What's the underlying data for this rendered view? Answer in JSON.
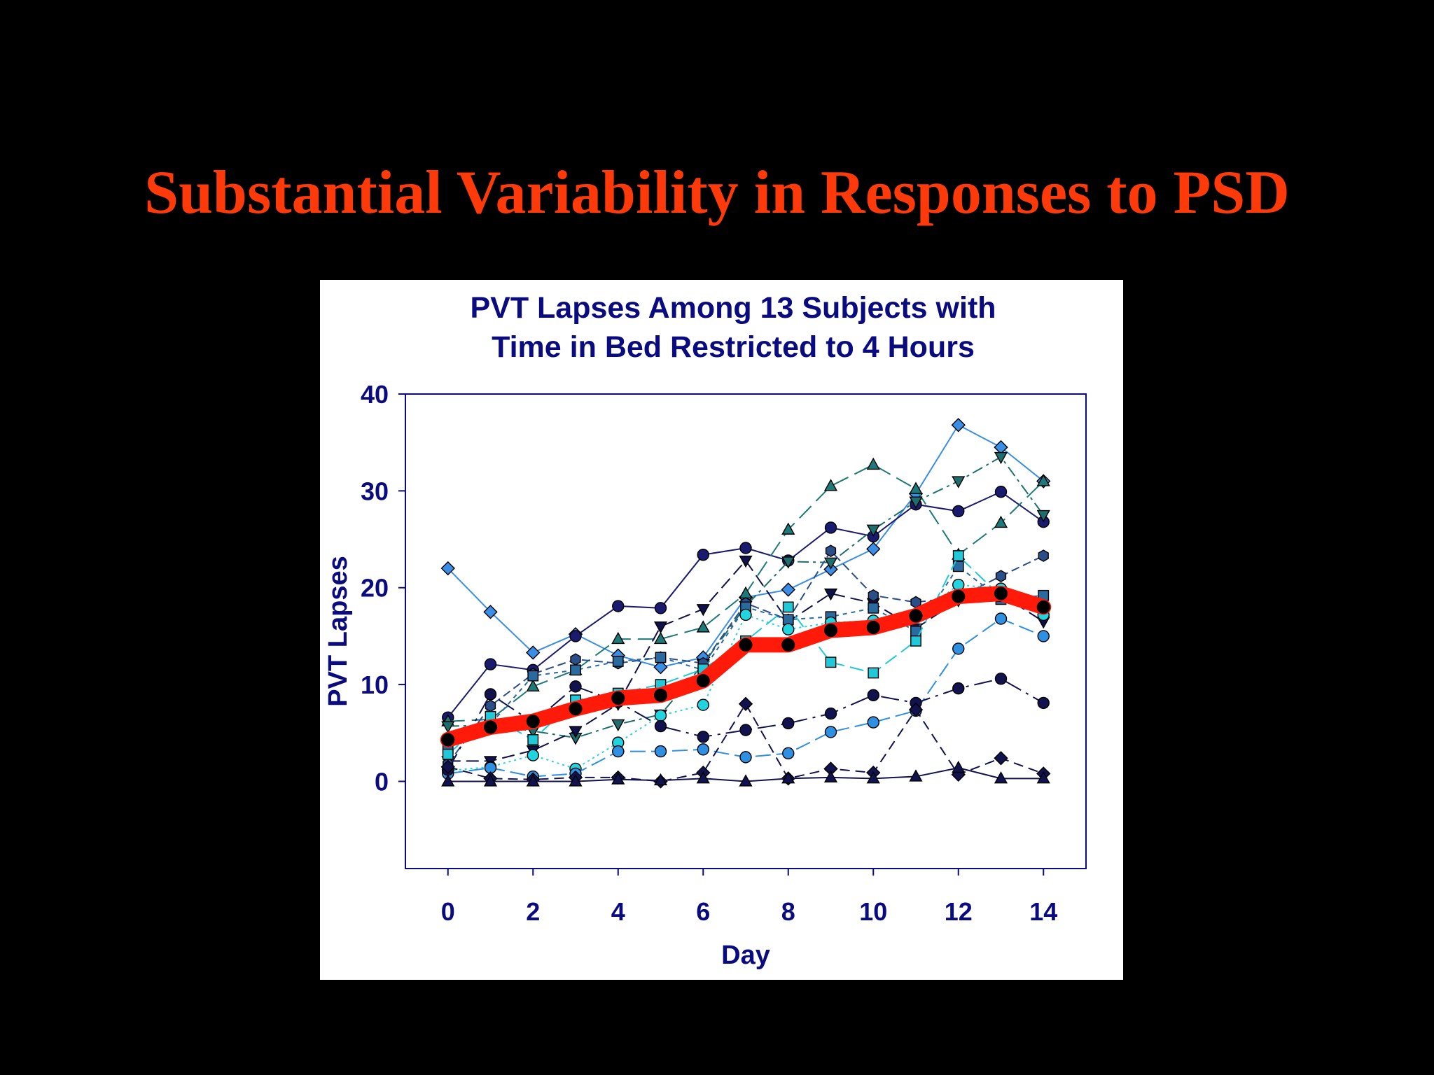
{
  "slide": {
    "title": "Substantial Variability in Responses to PSD"
  },
  "chart_data": {
    "type": "line",
    "title": [
      "PVT Lapses Among 13 Subjects with",
      "Time in Bed Restricted to 4 Hours"
    ],
    "xlabel": "Day",
    "ylabel": "PVT Lapses",
    "xlim": [
      -1,
      15
    ],
    "ylim": [
      -9,
      40
    ],
    "xticks": [
      0,
      2,
      4,
      6,
      8,
      10,
      12,
      14
    ],
    "yticks": [
      0,
      10,
      20,
      30,
      40
    ],
    "grid": false,
    "x": [
      0,
      1,
      2,
      3,
      4,
      5,
      6,
      7,
      8,
      9,
      10,
      11,
      12,
      13,
      14
    ],
    "colors": {
      "background": "#000000",
      "title": "#FF3A0A",
      "axis": "#0B0B80",
      "mean": "#FF1A0A"
    },
    "series": [
      {
        "marker": "diamond",
        "color": "#3A8EE6",
        "line": "#3A8EE6",
        "dash": "",
        "values": [
          22,
          17.5,
          13.3,
          15.2,
          13,
          11.8,
          12.8,
          19,
          19.8,
          21.9,
          24,
          29.7,
          36.8,
          34.5,
          31
        ]
      },
      {
        "marker": "circle",
        "color": "#1A1A6E",
        "line": "#1A1A6E",
        "dash": "",
        "values": [
          6.6,
          12.1,
          11.5,
          15,
          18.1,
          17.9,
          23.4,
          24.1,
          22.8,
          26.2,
          25.3,
          28.6,
          27.9,
          29.9,
          26.8
        ]
      },
      {
        "marker": "triangle",
        "color": "#1E7A7A",
        "line": "#1E7A7A",
        "dash": "24 10",
        "values": [
          6.2,
          6.4,
          9.8,
          11.5,
          14.7,
          14.7,
          15.9,
          19.4,
          26,
          30.5,
          32.7,
          30.2,
          23.4,
          26.7,
          31
        ]
      },
      {
        "marker": "triangle-down",
        "color": "#1E6E6E",
        "line": "#1E6E6E",
        "dash": "16 6 4 6",
        "values": [
          5.7,
          5.8,
          5.2,
          4.5,
          5.9,
          6.9,
          12.1,
          18.1,
          22.7,
          22.6,
          26,
          28.9,
          31,
          33.5,
          27.5
        ]
      },
      {
        "marker": "triangle-down",
        "color": "#10104A",
        "line": "#10104A",
        "dash": "18 8",
        "values": [
          2.1,
          2.1,
          3.2,
          5.2,
          8,
          16,
          17.8,
          22.8,
          16.5,
          19.4,
          18.4,
          15.8,
          18.7,
          19.3,
          16.5
        ]
      },
      {
        "marker": "hexagon",
        "color": "#2A4E88",
        "line": "#2A4E88",
        "dash": "12 6",
        "values": [
          1.8,
          7.8,
          11.1,
          12.6,
          12.2,
          12.8,
          12.2,
          18.4,
          16.7,
          23.8,
          19.2,
          18.5,
          19,
          21.2,
          23.3
        ]
      },
      {
        "marker": "square",
        "color": "#2A6A9E",
        "line": "#2A6A9E",
        "dash": "6 6",
        "values": [
          3.4,
          5.9,
          10.9,
          11.5,
          12.4,
          12.8,
          11.5,
          18,
          16.7,
          17,
          17.9,
          15.5,
          22.2,
          18.8,
          19.2
        ]
      },
      {
        "marker": "square",
        "color": "#20C8D8",
        "line": "#20C8D8",
        "dash": "20 8",
        "values": [
          2.8,
          6.7,
          4.3,
          8.4,
          9.1,
          10,
          11.6,
          14.5,
          18,
          12.3,
          11.2,
          14.5,
          23.3,
          19.1,
          17.5
        ]
      },
      {
        "marker": "circle",
        "color": "#22D4E0",
        "line": "#22D4E0",
        "dash": "3 5",
        "values": [
          1.1,
          1.5,
          2.7,
          1.3,
          4,
          6.8,
          7.9,
          17.2,
          15.7,
          16.4,
          16.6,
          17,
          20.3,
          19.9,
          17.2
        ]
      },
      {
        "marker": "circle",
        "color": "#2F8FE0",
        "line": "#2F8FE0",
        "dash": "22 8",
        "values": [
          0.8,
          1.4,
          0.5,
          0.8,
          3.1,
          3.1,
          3.3,
          2.5,
          2.9,
          5.1,
          6.1,
          7.3,
          13.7,
          16.8,
          15
        ]
      },
      {
        "marker": "circle",
        "color": "#12124E",
        "line": "#12124E",
        "dash": "26 8 4 8",
        "values": [
          1.2,
          9,
          6.1,
          9.8,
          8.2,
          5.7,
          4.6,
          5.3,
          6,
          7,
          8.9,
          8.1,
          9.6,
          10.6,
          8.1
        ]
      },
      {
        "marker": "diamond",
        "color": "#12124E",
        "line": "#12124E",
        "dash": "14 8",
        "values": [
          1.5,
          0.3,
          0.2,
          0.4,
          0.4,
          0,
          0.9,
          8,
          0.3,
          1.3,
          0.9,
          7.4,
          0.7,
          2.4,
          0.8
        ]
      },
      {
        "marker": "triangle",
        "color": "#12124E",
        "line": "#12124E",
        "dash": "",
        "values": [
          0,
          0,
          0,
          0,
          0.2,
          0.1,
          0.3,
          0,
          0.3,
          0.4,
          0.3,
          0.5,
          1.4,
          0.3,
          0.3
        ]
      }
    ],
    "mean": {
      "marker": "circle",
      "color": "#FF1A0A",
      "values": [
        4.3,
        5.6,
        6.2,
        7.5,
        8.6,
        8.9,
        10.4,
        14.1,
        14.1,
        15.6,
        15.9,
        17.1,
        19.1,
        19.4,
        18
      ]
    }
  }
}
